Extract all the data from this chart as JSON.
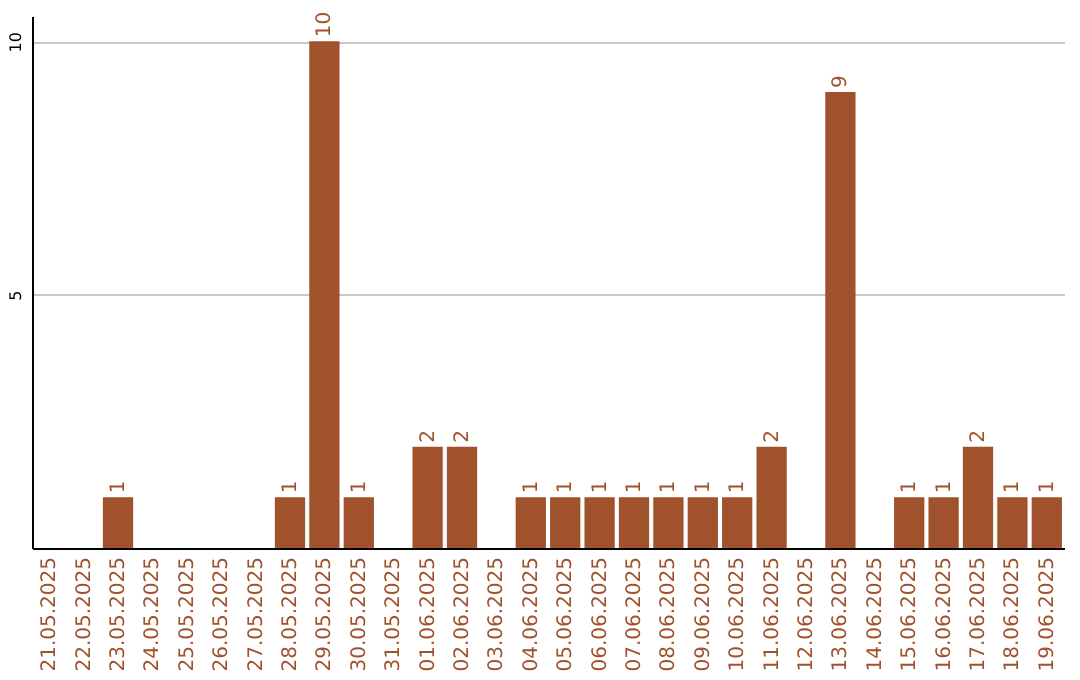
{
  "chart_data": {
    "type": "bar",
    "categories": [
      "21.05.2025",
      "22.05.2025",
      "23.05.2025",
      "24.05.2025",
      "25.05.2025",
      "26.05.2025",
      "27.05.2025",
      "28.05.2025",
      "29.05.2025",
      "30.05.2025",
      "31.05.2025",
      "01.06.2025",
      "02.06.2025",
      "03.06.2025",
      "04.06.2025",
      "05.06.2025",
      "06.06.2025",
      "07.06.2025",
      "08.06.2025",
      "09.06.2025",
      "10.06.2025",
      "11.06.2025",
      "12.06.2025",
      "13.06.2025",
      "14.06.2025",
      "15.06.2025",
      "16.06.2025",
      "17.06.2025",
      "18.06.2025",
      "19.06.2025"
    ],
    "values": [
      0,
      0,
      1,
      0,
      0,
      0,
      0,
      1,
      10,
      1,
      0,
      2,
      2,
      0,
      1,
      1,
      1,
      1,
      1,
      1,
      1,
      2,
      0,
      9,
      0,
      1,
      1,
      2,
      1,
      1
    ],
    "value_labels": [
      null,
      null,
      "1",
      null,
      null,
      null,
      null,
      "1",
      "10",
      "1",
      null,
      "2",
      "2",
      null,
      "1",
      "1",
      "1",
      "1",
      "1",
      "1",
      "1",
      "2",
      null,
      "9",
      null,
      "1",
      "1",
      "2",
      "1",
      "1"
    ],
    "color": "#a0522d",
    "ylim": [
      0,
      10.5
    ],
    "yticks": [
      5,
      10
    ],
    "grid": "y"
  }
}
